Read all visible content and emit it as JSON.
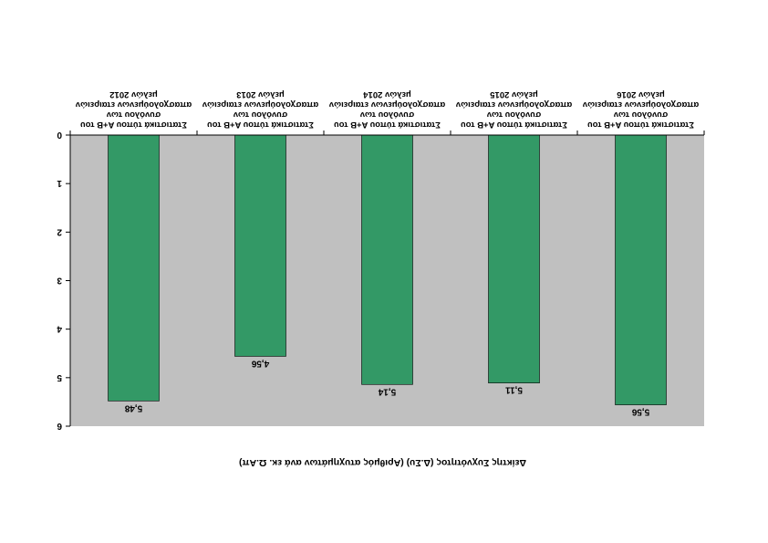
{
  "chart_data": {
    "type": "bar",
    "orientation": "rotated-180",
    "categories": [
      [
        "Στατιστικά τύπου Α+Β του",
        "συνόλου των",
        "απασχολούμενων εταιρειών",
        "μελών 2016"
      ],
      [
        "Στατιστικά τύπου Α+Β του",
        "συνόλου των",
        "απασχολούμενων εταιρειών",
        "μελών 2015"
      ],
      [
        "Στατιστικά τύπου Α+Β του",
        "συνόλου των",
        "απασχολούμενων εταιρειών",
        "μελών 2014"
      ],
      [
        "Στατιστικά τύπου Α+Β του",
        "συνόλου των",
        "απασχολούμενων εταιρειών",
        "μελών 2013"
      ],
      [
        "Στατιστικά τύπου Α+Β του",
        "συνόλου των",
        "απασχολούμενων εταιρειών",
        "μελών 2012"
      ]
    ],
    "values": [
      5.56,
      5.11,
      5.14,
      4.56,
      5.48
    ],
    "value_labels": [
      "5,56",
      "5,11",
      "5,14",
      "4,56",
      "5,48"
    ],
    "yticks": [
      "0",
      "1",
      "2",
      "3",
      "4",
      "5",
      "6"
    ],
    "ylim": [
      0,
      6
    ],
    "xlabel": "Δείκτης Συχνότητος (Δ.Συ) (Αριθμός ατυχημάτων  ανά εκ. Ω.Απ)",
    "ylabel": "",
    "title": "",
    "grid": false,
    "colors": {
      "bar": "#339966",
      "plot_background": "#c0c0c0",
      "axis": "#000000"
    }
  }
}
